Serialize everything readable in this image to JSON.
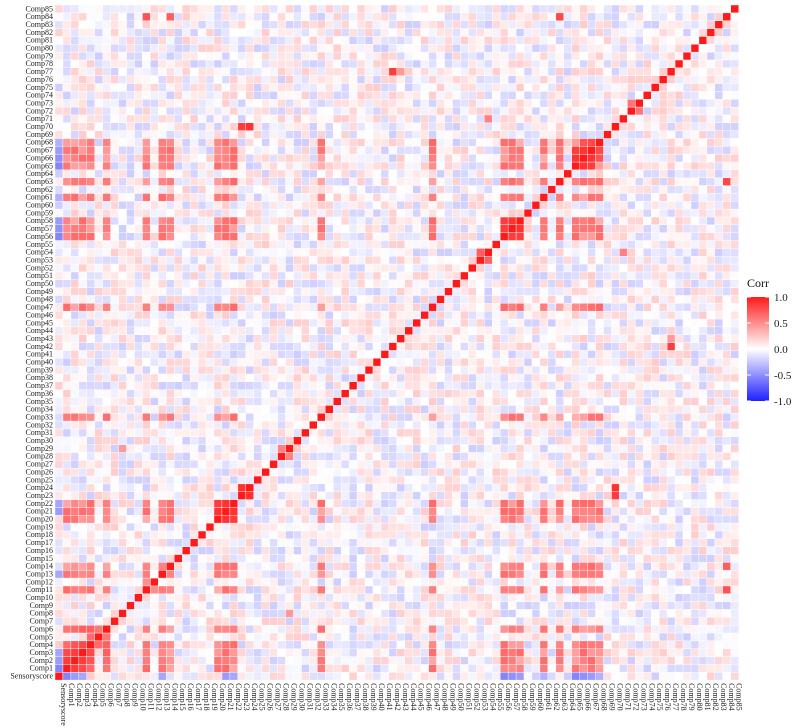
{
  "chart_data": {
    "type": "heatmap",
    "title": "",
    "xlabel": "",
    "ylabel": "",
    "labels": [
      "Sensoryscore",
      "Comp1",
      "Comp2",
      "Comp3",
      "Comp4",
      "Comp5",
      "Comp6",
      "Comp7",
      "Comp8",
      "Comp9",
      "Comp10",
      "Comp11",
      "Comp12",
      "Comp13",
      "Comp14",
      "Comp15",
      "Comp16",
      "Comp17",
      "Comp18",
      "Comp19",
      "Comp20",
      "Comp21",
      "Comp22",
      "Comp23",
      "Comp24",
      "Comp25",
      "Comp26",
      "Comp27",
      "Comp28",
      "Comp29",
      "Comp30",
      "Comp31",
      "Comp32",
      "Comp33",
      "Comp34",
      "Comp35",
      "Comp36",
      "Comp37",
      "Comp38",
      "Comp39",
      "Comp40",
      "Comp41",
      "Comp42",
      "Comp43",
      "Comp44",
      "Comp45",
      "Comp46",
      "Comp47",
      "Comp48",
      "Comp49",
      "Comp50",
      "Comp51",
      "Comp52",
      "Comp53",
      "Comp54",
      "Comp55",
      "Comp56",
      "Comp57",
      "Comp58",
      "Comp59",
      "Comp60",
      "Comp61",
      "Comp62",
      "Comp63",
      "Comp64",
      "Comp65",
      "Comp66",
      "Comp67",
      "Comp68",
      "Comp69",
      "Comp70",
      "Comp71",
      "Comp72",
      "Comp73",
      "Comp74",
      "Comp75",
      "Comp76",
      "Comp77",
      "Comp78",
      "Comp79",
      "Comp80",
      "Comp81",
      "Comp82",
      "Comp83",
      "Comp84",
      "Comp85"
    ],
    "diagonal": 1.0,
    "strong_pairs": [
      [
        "Comp1",
        "Comp2",
        0.85
      ],
      [
        "Comp1",
        "Comp3",
        0.8
      ],
      [
        "Comp2",
        "Comp3",
        0.85
      ],
      [
        "Comp2",
        "Comp4",
        0.75
      ],
      [
        "Comp3",
        "Comp4",
        0.8
      ],
      [
        "Comp4",
        "Comp6",
        0.7
      ],
      [
        "Comp3",
        "Comp6",
        0.7
      ],
      [
        "Comp4",
        "Comp5",
        0.65
      ],
      [
        "Comp5",
        "Comp6",
        0.6
      ],
      [
        "Comp20",
        "Comp21",
        0.9
      ],
      [
        "Comp20",
        "Comp22",
        0.85
      ],
      [
        "Comp21",
        "Comp22",
        0.9
      ],
      [
        "Comp23",
        "Comp24",
        0.9
      ],
      [
        "Comp53",
        "Comp54",
        0.7
      ],
      [
        "Comp56",
        "Comp57",
        0.85
      ],
      [
        "Comp56",
        "Comp58",
        0.85
      ],
      [
        "Comp57",
        "Comp58",
        0.9
      ],
      [
        "Comp65",
        "Comp66",
        0.9
      ],
      [
        "Comp65",
        "Comp67",
        0.85
      ],
      [
        "Comp66",
        "Comp67",
        0.9
      ],
      [
        "Comp67",
        "Comp68",
        0.8
      ],
      [
        "Comp66",
        "Comp68",
        0.75
      ],
      [
        "Comp24",
        "Comp70",
        0.9
      ],
      [
        "Comp23",
        "Comp70",
        0.85
      ],
      [
        "Comp42",
        "Comp77",
        0.85
      ],
      [
        "Comp43",
        "Comp77",
        0.45
      ],
      [
        "Comp72",
        "Comp73",
        0.6
      ],
      [
        "Comp28",
        "Comp29",
        0.55
      ],
      [
        "Comp11",
        "Comp12",
        0.5
      ],
      [
        "Comp84",
        "Comp63",
        0.8
      ],
      [
        "Comp11",
        "Comp84",
        0.75
      ],
      [
        "Comp14",
        "Comp84",
        0.7
      ],
      [
        "Comp71",
        "Comp54",
        0.55
      ],
      [
        "Comp8",
        "Comp29",
        0.45
      ]
    ],
    "block_pairs": {
      "group": [
        "Comp1",
        "Comp2",
        "Comp3",
        "Comp4",
        "Comp6",
        "Comp11",
        "Comp13",
        "Comp14",
        "Comp20",
        "Comp21",
        "Comp22",
        "Comp56",
        "Comp57",
        "Comp58",
        "Comp61",
        "Comp63",
        "Comp65",
        "Comp66",
        "Comp67",
        "Comp68",
        "Comp33",
        "Comp47"
      ],
      "value": 0.55
    },
    "negative_pairs": [
      [
        "Sensoryscore",
        "Comp1",
        -0.55
      ],
      [
        "Sensoryscore",
        "Comp2",
        -0.45
      ],
      [
        "Sensoryscore",
        "Comp3",
        -0.4
      ],
      [
        "Sensoryscore",
        "Comp21",
        -0.45
      ],
      [
        "Sensoryscore",
        "Comp22",
        -0.4
      ],
      [
        "Sensoryscore",
        "Comp56",
        -0.55
      ],
      [
        "Sensoryscore",
        "Comp57",
        -0.5
      ],
      [
        "Sensoryscore",
        "Comp58",
        -0.45
      ],
      [
        "Sensoryscore",
        "Comp65",
        -0.55
      ],
      [
        "Sensoryscore",
        "Comp66",
        -0.5
      ],
      [
        "Sensoryscore",
        "Comp67",
        -0.45
      ],
      [
        "Sensoryscore",
        "Comp13",
        -0.4
      ],
      [
        "Sensoryscore",
        "Comp61",
        -0.35
      ],
      [
        "Sensoryscore",
        "Comp68",
        -0.35
      ]
    ],
    "legend": {
      "title": "Corr",
      "ticks": [
        "1.0",
        "0.5",
        "0.0",
        "-0.5",
        "-1.0"
      ],
      "tick_values": [
        1.0,
        0.5,
        0.0,
        -0.5,
        -1.0
      ],
      "position": "right"
    },
    "colors": {
      "low": "#2020ff",
      "mid": "#ffffff",
      "high": "#ff1a1a"
    },
    "range": [
      -1,
      1
    ]
  }
}
